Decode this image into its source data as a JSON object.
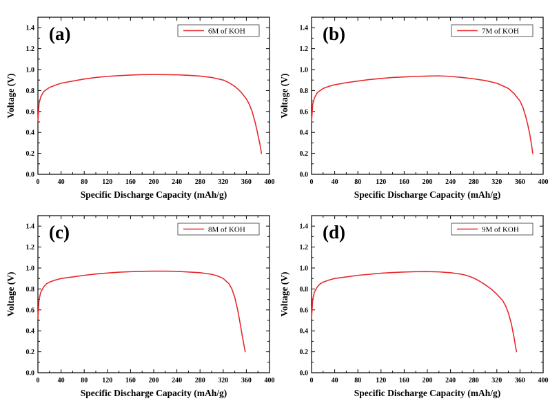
{
  "chart_data": [
    {
      "type": "line",
      "panel_label": "(a)",
      "xlabel": "Specific Discharge Capacity (mAh/g)",
      "ylabel": "Voltage (V)",
      "xlim": [
        0,
        400
      ],
      "ylim": [
        0,
        1.5
      ],
      "xticks": [
        0,
        40,
        80,
        120,
        160,
        200,
        240,
        280,
        320,
        360,
        400
      ],
      "yticks": [
        0.0,
        0.2,
        0.4,
        0.6,
        0.8,
        1.0,
        1.2,
        1.4
      ],
      "grid": false,
      "legend": "top-right",
      "series": [
        {
          "name": "6M of KOH",
          "color": "#e8282a",
          "x": [
            0,
            2,
            5,
            10,
            15,
            20,
            30,
            40,
            60,
            80,
            100,
            120,
            140,
            160,
            180,
            200,
            220,
            240,
            260,
            280,
            300,
            320,
            330,
            340,
            350,
            360,
            365,
            370,
            375,
            378,
            381,
            383,
            385,
            386
          ],
          "y": [
            0.5,
            0.68,
            0.74,
            0.79,
            0.81,
            0.83,
            0.85,
            0.87,
            0.89,
            0.91,
            0.925,
            0.935,
            0.942,
            0.948,
            0.952,
            0.953,
            0.952,
            0.95,
            0.945,
            0.938,
            0.925,
            0.9,
            0.875,
            0.84,
            0.79,
            0.72,
            0.67,
            0.6,
            0.5,
            0.43,
            0.35,
            0.3,
            0.24,
            0.2
          ]
        }
      ]
    },
    {
      "type": "line",
      "panel_label": "(b)",
      "xlabel": "Specific Discharge Capacity (mAh/g)",
      "ylabel": "Voltage (V)",
      "xlim": [
        0,
        400
      ],
      "ylim": [
        0,
        1.5
      ],
      "xticks": [
        0,
        40,
        80,
        120,
        160,
        200,
        240,
        280,
        320,
        360,
        400
      ],
      "yticks": [
        0.0,
        0.2,
        0.4,
        0.6,
        0.8,
        1.0,
        1.2,
        1.4
      ],
      "grid": false,
      "legend": "top-right",
      "series": [
        {
          "name": "7M of KOH",
          "color": "#e8282a",
          "x": [
            0,
            2,
            5,
            10,
            15,
            20,
            30,
            40,
            60,
            80,
            100,
            120,
            140,
            160,
            180,
            200,
            220,
            240,
            260,
            280,
            300,
            320,
            340,
            350,
            360,
            365,
            370,
            374,
            377,
            380,
            382
          ],
          "y": [
            0.5,
            0.67,
            0.73,
            0.78,
            0.8,
            0.82,
            0.84,
            0.855,
            0.875,
            0.89,
            0.905,
            0.915,
            0.925,
            0.93,
            0.935,
            0.938,
            0.94,
            0.935,
            0.925,
            0.912,
            0.895,
            0.87,
            0.82,
            0.77,
            0.7,
            0.64,
            0.55,
            0.46,
            0.38,
            0.28,
            0.2
          ]
        }
      ]
    },
    {
      "type": "line",
      "panel_label": "(c)",
      "xlabel": "Specific Discharge Capacity (mAh/g)",
      "ylabel": "Voltage (V)",
      "xlim": [
        0,
        400
      ],
      "ylim": [
        0,
        1.5
      ],
      "xticks": [
        0,
        40,
        80,
        120,
        160,
        200,
        240,
        280,
        320,
        360,
        400
      ],
      "yticks": [
        0.0,
        0.2,
        0.4,
        0.6,
        0.8,
        1.0,
        1.2,
        1.4
      ],
      "grid": false,
      "legend": "top-right",
      "series": [
        {
          "name": "8M of KOH",
          "color": "#e8282a",
          "x": [
            0,
            2,
            5,
            10,
            15,
            20,
            30,
            40,
            60,
            80,
            100,
            120,
            140,
            160,
            180,
            200,
            220,
            240,
            260,
            280,
            300,
            310,
            320,
            330,
            335,
            340,
            345,
            350,
            353,
            356,
            358
          ],
          "y": [
            0.52,
            0.7,
            0.77,
            0.82,
            0.85,
            0.865,
            0.885,
            0.9,
            0.915,
            0.93,
            0.943,
            0.952,
            0.96,
            0.965,
            0.968,
            0.97,
            0.97,
            0.968,
            0.962,
            0.955,
            0.94,
            0.925,
            0.9,
            0.85,
            0.8,
            0.72,
            0.6,
            0.45,
            0.35,
            0.26,
            0.2
          ]
        }
      ]
    },
    {
      "type": "line",
      "panel_label": "(d)",
      "xlabel": "Specific Discharge Capacity (mAh/g)",
      "ylabel": "Voltage (V)",
      "xlim": [
        0,
        400
      ],
      "ylim": [
        0,
        1.5
      ],
      "xticks": [
        0,
        40,
        80,
        120,
        160,
        200,
        240,
        280,
        320,
        360,
        400
      ],
      "yticks": [
        0.0,
        0.2,
        0.4,
        0.6,
        0.8,
        1.0,
        1.2,
        1.4
      ],
      "grid": false,
      "legend": "top-right",
      "series": [
        {
          "name": "9M of KOH",
          "color": "#e8282a",
          "x": [
            0,
            2,
            5,
            10,
            15,
            20,
            30,
            40,
            60,
            80,
            100,
            120,
            140,
            160,
            180,
            200,
            220,
            240,
            260,
            270,
            280,
            290,
            300,
            310,
            320,
            330,
            335,
            340,
            345,
            350,
            352,
            354
          ],
          "y": [
            0.52,
            0.7,
            0.77,
            0.82,
            0.85,
            0.865,
            0.885,
            0.9,
            0.915,
            0.93,
            0.94,
            0.95,
            0.957,
            0.962,
            0.965,
            0.966,
            0.963,
            0.955,
            0.94,
            0.925,
            0.905,
            0.875,
            0.84,
            0.8,
            0.75,
            0.69,
            0.64,
            0.57,
            0.47,
            0.33,
            0.26,
            0.2
          ]
        }
      ]
    }
  ]
}
